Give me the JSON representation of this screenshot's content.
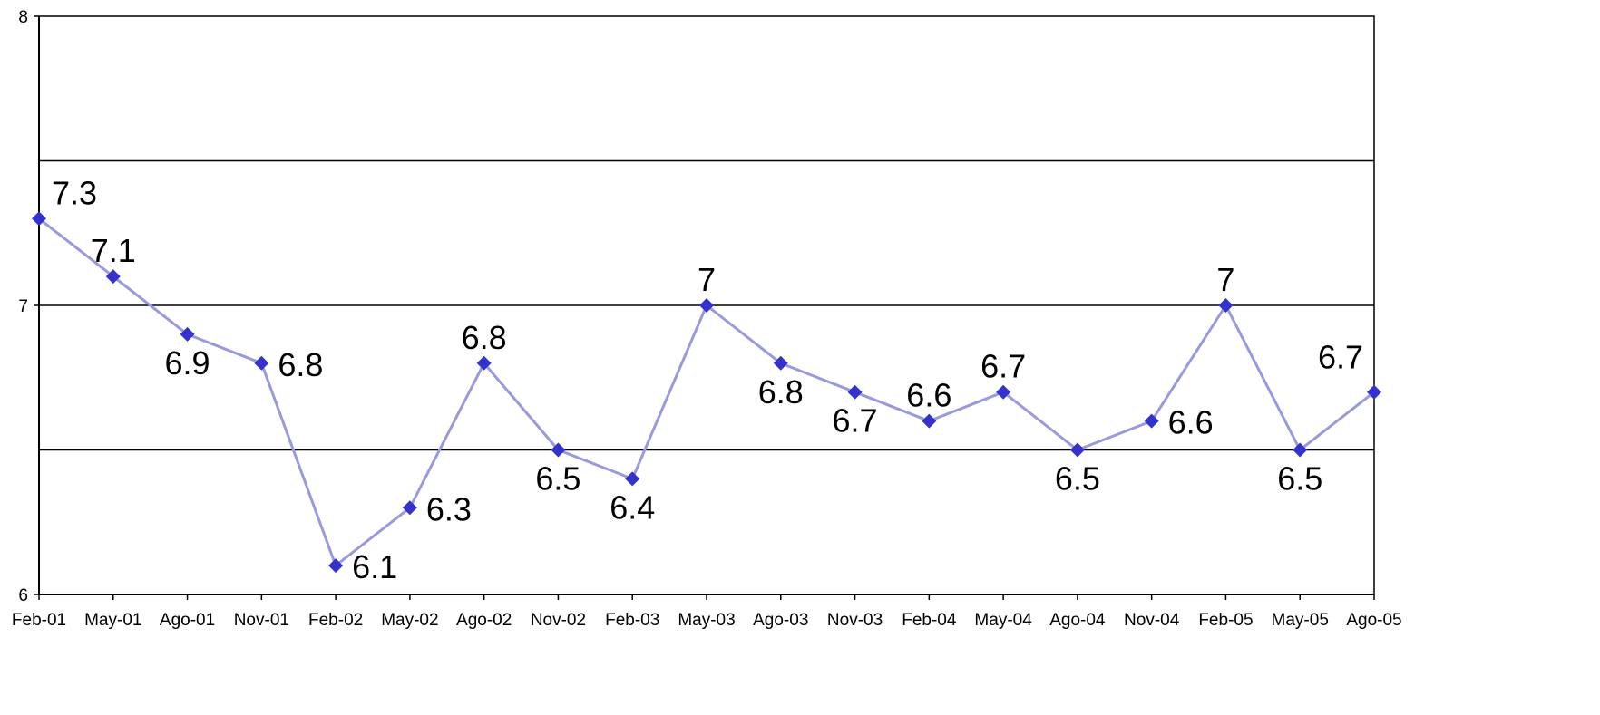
{
  "chart_data": {
    "type": "line",
    "title": "",
    "xlabel": "",
    "ylabel": "",
    "categories": [
      "Feb-01",
      "May-01",
      "Ago-01",
      "Nov-01",
      "Feb-02",
      "May-02",
      "Ago-02",
      "Nov-02",
      "Feb-03",
      "May-03",
      "Ago-03",
      "Nov-03",
      "Feb-04",
      "May-04",
      "Ago-04",
      "Nov-04",
      "Feb-05",
      "May-05",
      "Ago-05"
    ],
    "series": [
      {
        "values": [
          7.3,
          7.1,
          6.9,
          6.8,
          6.1,
          6.3,
          6.8,
          6.5,
          6.4,
          7,
          6.8,
          6.7,
          6.6,
          6.7,
          6.5,
          6.6,
          7,
          6.5,
          6.7
        ],
        "labels": [
          "7.3",
          "7.1",
          "6.9",
          "6.8",
          "6.1",
          "6.3",
          "6.8",
          "6.5",
          "6.4",
          "7",
          "6.8",
          "6.7",
          "6.6",
          "6.7",
          "6.5",
          "6.6",
          "7",
          "6.5",
          "6.7"
        ],
        "label_positions": [
          "above",
          "above",
          "below",
          "right",
          "right",
          "right",
          "above",
          "below",
          "below",
          "above",
          "below",
          "below",
          "above",
          "above",
          "below",
          "right",
          "above",
          "below",
          "above"
        ]
      }
    ],
    "ylim": [
      6,
      8
    ],
    "y_ticks": [
      "6",
      "7",
      "8"
    ],
    "y_gridlines": [
      6.5,
      7,
      7.5
    ],
    "grid": true,
    "legend": "none",
    "colors": {
      "line": "#9999dd",
      "marker": "#3333cc",
      "grid": "#000000",
      "axis": "#000000"
    }
  }
}
